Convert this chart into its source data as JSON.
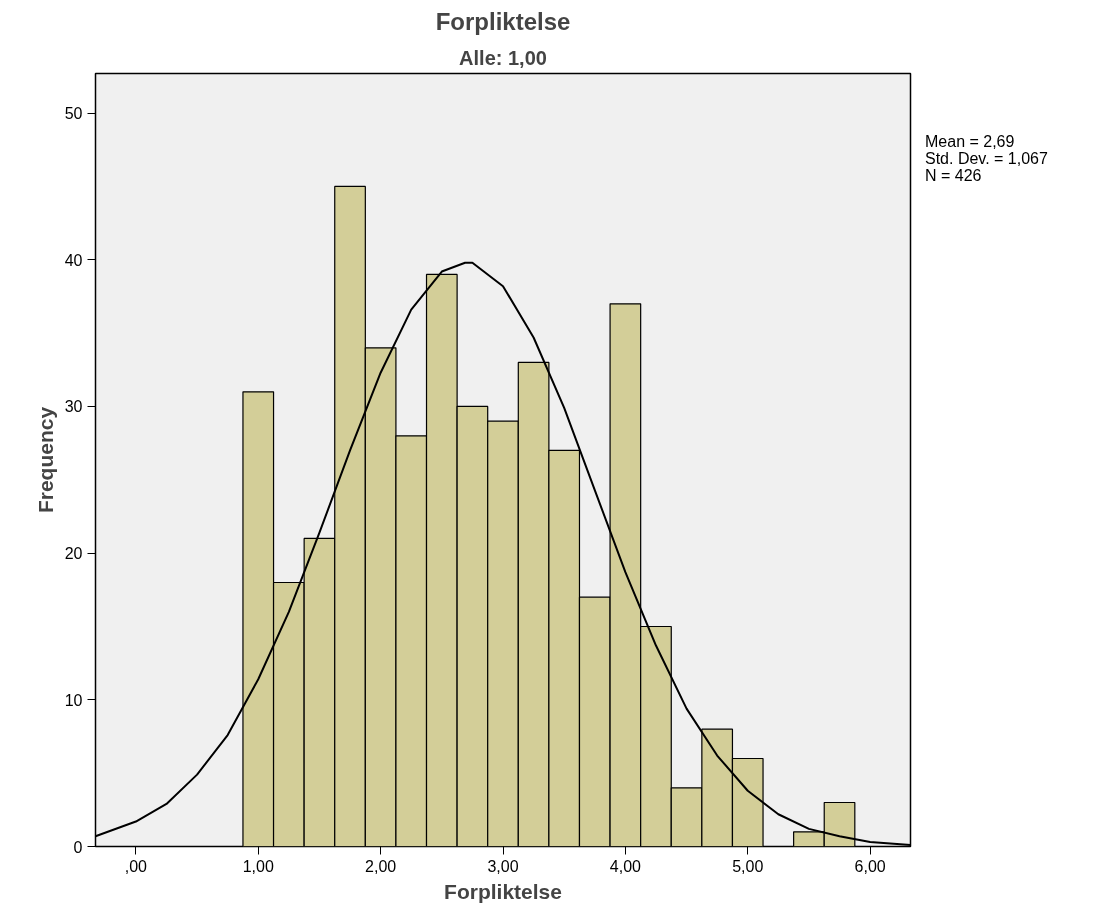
{
  "chart_data": {
    "type": "histogram",
    "title": "Forpliktelse",
    "subtitle": "Alle: 1,00",
    "xlabel": "Forpliktelse",
    "ylabel": "Frequency",
    "bins": [
      0.875,
      1.125,
      1.375,
      1.625,
      1.875,
      2.125,
      2.375,
      2.625,
      2.875,
      3.125,
      3.375,
      3.625,
      3.875,
      4.125,
      4.375,
      4.625,
      4.875,
      5.125,
      5.375,
      5.625,
      5.875
    ],
    "values": [
      31,
      18,
      21,
      45,
      34,
      28,
      39,
      30,
      29,
      33,
      27,
      17,
      37,
      15,
      4,
      8,
      6,
      0,
      1,
      3
    ],
    "color": "#d3ce98",
    "series": [
      {
        "type": "line",
        "color": "#000000",
        "x": [
          -0.33,
          0,
          0.25,
          0.5,
          0.75,
          1,
          1.25,
          1.5,
          1.75,
          2,
          2.25,
          2.5,
          2.69,
          2.75,
          3,
          3.25,
          3.5,
          3.75,
          4,
          4.25,
          4.5,
          4.75,
          5,
          5.25,
          5.5,
          5.75,
          6,
          6.33
        ],
        "values": [
          0.7,
          1.7,
          2.9,
          4.9,
          7.6,
          11.4,
          16,
          21.4,
          27,
          32.3,
          36.6,
          39.2,
          39.8,
          39.8,
          38.2,
          34.7,
          29.9,
          24.3,
          18.7,
          13.7,
          9.4,
          6.2,
          3.8,
          2.2,
          1.2,
          0.7,
          0.3,
          0.1
        ]
      }
    ],
    "xlim": [
      -0.33,
      6.33
    ],
    "ylim": [
      0,
      52.7
    ],
    "xticks": [
      {
        "value": 0,
        "label": ",00"
      },
      {
        "value": 1,
        "label": "1,00"
      },
      {
        "value": 2,
        "label": "2,00"
      },
      {
        "value": 3,
        "label": "3,00"
      },
      {
        "value": 4,
        "label": "4,00"
      },
      {
        "value": 5,
        "label": "5,00"
      },
      {
        "value": 6,
        "label": "6,00"
      }
    ],
    "yticks": [
      0,
      10,
      20,
      30,
      40,
      50
    ],
    "annotations": [
      "Mean = 2,69",
      "Std. Dev. = 1,067",
      "N = 426"
    ]
  }
}
